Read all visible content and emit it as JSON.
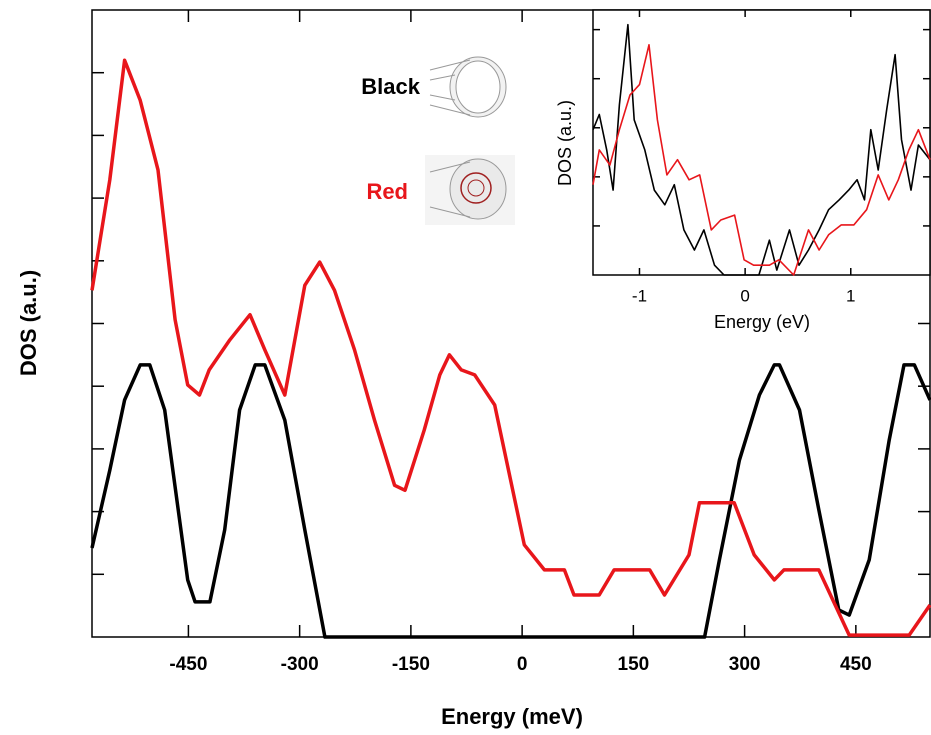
{
  "chart_data": [
    {
      "type": "line",
      "xlabel": "Energy (meV)",
      "ylabel": "DOS (a.u.)",
      "xlim": [
        -580,
        550
      ],
      "ylim": [
        0,
        10
      ],
      "xticks": [
        -450,
        -300,
        -150,
        0,
        150,
        300,
        450
      ],
      "yticks": [
        1,
        2,
        3,
        4,
        5,
        6,
        7,
        8,
        9
      ],
      "series": [
        {
          "name": "Black",
          "color": "#000000",
          "x": [
            -580,
            -556,
            -536,
            -515,
            -502,
            -482,
            -451,
            -441,
            -421,
            -401,
            -381,
            -360,
            -347,
            -320,
            -293,
            -266,
            246,
            266,
            293,
            320,
            340,
            347,
            374,
            400,
            427,
            441,
            468,
            495,
            515,
            529,
            550
          ],
          "values": [
            1.42,
            2.66,
            3.78,
            4.34,
            4.34,
            3.62,
            0.91,
            0.56,
            0.56,
            1.71,
            3.62,
            4.34,
            4.34,
            3.46,
            1.71,
            0,
            0,
            1.23,
            2.82,
            3.86,
            4.34,
            4.34,
            3.62,
            2.03,
            0.43,
            0.35,
            1.23,
            3.14,
            4.34,
            4.34,
            3.78
          ]
        },
        {
          "name": "Red",
          "color": "#e8161b",
          "x": [
            -580,
            -556,
            -536,
            -515,
            -491,
            -468,
            -451,
            -435,
            -422,
            -394,
            -367,
            -347,
            -320,
            -293,
            -273,
            -253,
            -226,
            -199,
            -172,
            -158,
            -132,
            -111,
            -98,
            -82,
            -64,
            -37,
            3,
            30,
            57,
            70,
            104,
            124,
            172,
            192,
            225,
            239,
            286,
            313,
            340,
            353,
            400,
            441,
            522,
            550
          ],
          "values": [
            5.53,
            7.29,
            9.2,
            8.56,
            7.45,
            5.06,
            4.02,
            3.86,
            4.26,
            4.74,
            5.14,
            4.58,
            3.86,
            5.61,
            5.98,
            5.53,
            4.58,
            3.46,
            2.42,
            2.34,
            3.3,
            4.18,
            4.5,
            4.26,
            4.18,
            3.7,
            1.47,
            1.07,
            1.07,
            0.67,
            0.67,
            1.07,
            1.07,
            0.67,
            1.31,
            2.14,
            2.14,
            1.31,
            0.91,
            1.07,
            1.07,
            0.03,
            0.03,
            0.51
          ]
        }
      ]
    },
    {
      "type": "line",
      "xlabel": "Energy (eV)",
      "ylabel": "DOS (a.u.)",
      "xlim": [
        -1.44,
        1.75
      ],
      "ylim": [
        0,
        5.4
      ],
      "xticks": [
        -1,
        0,
        1
      ],
      "yticks": [
        1,
        2,
        3,
        4,
        5
      ],
      "series": [
        {
          "color": "#000000",
          "x": [
            -1.44,
            -1.38,
            -1.31,
            -1.25,
            -1.19,
            -1.11,
            -1.05,
            -0.95,
            -0.86,
            -0.76,
            -0.67,
            -0.58,
            -0.48,
            -0.39,
            -0.29,
            -0.2,
            0.13,
            0.23,
            0.3,
            0.42,
            0.51,
            0.6,
            0.7,
            0.79,
            0.89,
            0.98,
            1.06,
            1.13,
            1.19,
            1.26,
            1.34,
            1.42,
            1.48,
            1.57,
            1.64,
            1.75
          ],
          "values": [
            2.96,
            3.27,
            2.55,
            1.73,
            3.47,
            5.1,
            3.16,
            2.55,
            1.73,
            1.43,
            1.84,
            0.92,
            0.51,
            0.92,
            0.2,
            0,
            0,
            0.71,
            0.1,
            0.92,
            0.2,
            0.51,
            0.92,
            1.33,
            1.53,
            1.73,
            1.94,
            1.53,
            2.96,
            2.14,
            3.37,
            4.49,
            2.76,
            1.73,
            2.65,
            2.35
          ]
        },
        {
          "color": "#e8161b",
          "x": [
            -1.44,
            -1.38,
            -1.28,
            -1.19,
            -1.09,
            -1.0,
            -0.91,
            -0.83,
            -0.74,
            -0.64,
            -0.53,
            -0.43,
            -0.32,
            -0.23,
            -0.1,
            -0.01,
            0.08,
            0.23,
            0.32,
            0.46,
            0.6,
            0.7,
            0.79,
            0.91,
            1.03,
            1.15,
            1.26,
            1.36,
            1.45,
            1.55,
            1.64,
            1.75
          ],
          "values": [
            1.84,
            2.55,
            2.24,
            2.96,
            3.67,
            3.88,
            4.69,
            3.16,
            2.04,
            2.35,
            1.94,
            2.04,
            0.92,
            1.12,
            1.22,
            0.31,
            0.2,
            0.2,
            0.31,
            0,
            0.92,
            0.51,
            0.82,
            1.02,
            1.02,
            1.33,
            2.04,
            1.53,
            1.94,
            2.55,
            2.96,
            2.35
          ]
        }
      ]
    }
  ]
}
